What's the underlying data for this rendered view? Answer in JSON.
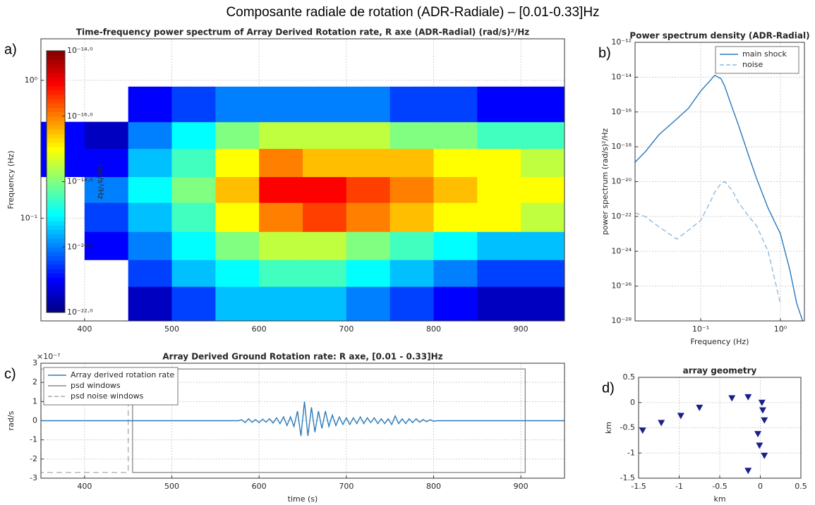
{
  "title": "Composante radiale de rotation (ADR-Radiale) – [0.01-0.33]Hz",
  "chart_data": [
    {
      "type": "heatmap",
      "panel_label": "a)",
      "title": "Time-frequency power spectrum of Array Derived Rotation rate, R axe (ADR-Radial) (rad/s)²/Hz",
      "y_label": "Frequency (Hz)",
      "xlim": [
        350,
        950
      ],
      "xticks": [
        400,
        500,
        600,
        700,
        800,
        900
      ],
      "ylim": [
        0.018,
        2
      ],
      "ylog": true,
      "yticks": [
        {
          "value": 0.1,
          "label": "10⁻¹"
        },
        {
          "value": 1,
          "label": "10⁰"
        }
      ],
      "grid": true,
      "x_edges": [
        350,
        400,
        450,
        500,
        550,
        600,
        650,
        700,
        750,
        800,
        850,
        900,
        950
      ],
      "y_edges": [
        0.018,
        0.032,
        0.05,
        0.08,
        0.13,
        0.2,
        0.32,
        0.5,
        0.9
      ],
      "z": [
        [
          null,
          null,
          3.2e-22,
          3.2e-21,
          3.2e-20,
          3.2e-20,
          3.2e-20,
          1e-20,
          3.2e-21,
          1e-21,
          3.2e-22,
          3.2e-22
        ],
        [
          null,
          null,
          3.2e-21,
          3.2e-20,
          1e-19,
          3.2e-19,
          3.2e-19,
          1e-19,
          3.2e-20,
          1e-20,
          3.2e-21,
          3.2e-21
        ],
        [
          null,
          1e-21,
          1e-20,
          1e-19,
          1e-18,
          3.2e-18,
          3.2e-18,
          1e-18,
          3.2e-19,
          1e-19,
          3.2e-20,
          3.2e-20
        ],
        [
          null,
          3.2e-21,
          3.2e-20,
          3.2e-19,
          1e-17,
          1e-16,
          3.2e-16,
          1e-16,
          3.2e-17,
          1e-17,
          1e-17,
          3.2e-18
        ],
        [
          null,
          1e-20,
          1e-19,
          1e-18,
          3.2e-17,
          1e-15,
          1e-15,
          3.2e-16,
          1e-16,
          3.2e-17,
          1e-17,
          1e-17
        ],
        [
          1e-21,
          1e-21,
          3.2e-20,
          3.2e-19,
          1e-17,
          1e-16,
          3.2e-17,
          3.2e-17,
          3.2e-17,
          1e-17,
          1e-17,
          3.2e-18
        ],
        [
          1e-21,
          3.2e-22,
          1e-20,
          1e-19,
          1e-18,
          3.2e-18,
          3.2e-18,
          3.2e-18,
          1e-18,
          1e-18,
          3.2e-19,
          3.2e-19
        ],
        [
          null,
          null,
          1e-21,
          3.2e-21,
          1e-20,
          1e-20,
          1e-20,
          1e-20,
          3.2e-21,
          3.2e-21,
          1e-21,
          1e-21
        ]
      ],
      "colorbar": {
        "colormap": "jet",
        "lim": [
          1e-22,
          1e-14
        ],
        "label": "rad/s²/Hz",
        "ticks": [
          {
            "value": 1e-14,
            "label": "10⁻¹⁴·⁰"
          },
          {
            "value": 1e-16,
            "label": "10⁻¹⁶·⁰"
          },
          {
            "value": 1e-18,
            "label": "10⁻¹⁸·⁰"
          },
          {
            "value": 1e-20,
            "label": "10⁻²⁰·⁰"
          },
          {
            "value": 1e-22,
            "label": "10⁻²²·⁰"
          }
        ]
      }
    },
    {
      "type": "line",
      "panel_label": "b)",
      "title": "Power spectrum density (ADR-Radial)",
      "x_label": "Frequency (Hz)",
      "y_label": "power spectrum (rad/s)²/Hz",
      "xlim": [
        0.015,
        2
      ],
      "xlog": true,
      "xticks": [
        {
          "value": 0.1,
          "label": "10⁻¹"
        },
        {
          "value": 1,
          "label": "10⁰"
        }
      ],
      "ylim": [
        1e-28,
        1e-12
      ],
      "ylog": true,
      "yticks": [
        {
          "value": 1e-28,
          "label": "10⁻²⁸"
        },
        {
          "value": 1e-26,
          "label": "10⁻²⁶"
        },
        {
          "value": 1e-24,
          "label": "10⁻²⁴"
        },
        {
          "value": 1e-22,
          "label": "10⁻²²"
        },
        {
          "value": 1e-20,
          "label": "10⁻²⁰"
        },
        {
          "value": 1e-18,
          "label": "10⁻¹⁸"
        },
        {
          "value": 1e-16,
          "label": "10⁻¹⁶"
        },
        {
          "value": 1e-14,
          "label": "10⁻¹⁴"
        },
        {
          "value": 1e-12,
          "label": "10⁻¹²"
        }
      ],
      "grid": true,
      "legend": "upper-right",
      "x": [
        0.015,
        0.02,
        0.03,
        0.05,
        0.07,
        0.1,
        0.13,
        0.15,
        0.18,
        0.2,
        0.25,
        0.3,
        0.4,
        0.5,
        0.7,
        1,
        1.3,
        1.6,
        1.9
      ],
      "series": [
        {
          "name": "main shock",
          "color": "#2878bd",
          "line_style": "solid",
          "values": [
            1.3e-19,
            5e-19,
            5e-18,
            4e-17,
            1.6e-16,
            1.6e-15,
            6e-15,
            1.3e-14,
            8e-15,
            3e-15,
            1.6e-16,
            1.6e-17,
            3e-19,
            1.6e-20,
            3e-22,
            1e-23,
            1e-25,
            1e-27,
            1e-28
          ]
        },
        {
          "name": "noise",
          "color": "#8fb9dd",
          "line_style": "dashed",
          "values": [
            1.6e-22,
            1e-22,
            2.5e-23,
            5e-24,
            1.6e-23,
            6e-23,
            6e-22,
            2.5e-21,
            8e-21,
            1e-20,
            3e-21,
            6e-22,
            1e-22,
            3e-23,
            1e-24,
            1e-27,
            null,
            null,
            null
          ]
        }
      ]
    },
    {
      "type": "line",
      "panel_label": "c)",
      "title": "Array Derived Ground Rotation rate: R axe,  [0.01 - 0.33]Hz",
      "x_label": "time (s)",
      "y_label": "rad/s",
      "y_offset_label": "×10⁻⁷",
      "xlim": [
        350,
        950
      ],
      "xticks": [
        400,
        500,
        600,
        700,
        800,
        900
      ],
      "ylim": [
        -3e-07,
        3e-07
      ],
      "yticks": [
        {
          "value": -3e-07,
          "label": "-3"
        },
        {
          "value": -2e-07,
          "label": "-2"
        },
        {
          "value": -1e-07,
          "label": "-1"
        },
        {
          "value": 0,
          "label": "0"
        },
        {
          "value": 1e-07,
          "label": "1"
        },
        {
          "value": 2e-07,
          "label": "2"
        },
        {
          "value": 3e-07,
          "label": "3"
        }
      ],
      "grid": true,
      "legend": "upper-left",
      "x": [
        350,
        576,
        580,
        584,
        588,
        592,
        596,
        600,
        604,
        608,
        612,
        616,
        620,
        624,
        628,
        632,
        636,
        640,
        644,
        648,
        652,
        656,
        660,
        664,
        668,
        672,
        676,
        680,
        684,
        688,
        692,
        696,
        700,
        704,
        708,
        712,
        716,
        720,
        724,
        728,
        732,
        736,
        740,
        744,
        748,
        752,
        756,
        760,
        764,
        768,
        772,
        776,
        780,
        784,
        788,
        792,
        796,
        800,
        804,
        950
      ],
      "series": [
        {
          "name": "Array derived rotation rate",
          "color": "#2b7bba",
          "line_style": "solid",
          "values": [
            0,
            0,
            5e-09,
            -1e-08,
            1e-08,
            -8e-09,
            6e-09,
            -1e-08,
            8e-09,
            -7e-09,
            1e-08,
            -1.2e-08,
            1.5e-08,
            -1.5e-08,
            2e-08,
            -2.5e-08,
            2e-08,
            -3e-08,
            5e-08,
            -8e-08,
            1e-07,
            -8e-08,
            7e-08,
            -6e-08,
            5e-08,
            -4e-08,
            5e-08,
            -3e-08,
            3e-08,
            -2.5e-08,
            2e-08,
            -2e-08,
            1.5e-08,
            -2e-08,
            1.5e-08,
            -1.5e-08,
            2e-08,
            -1.5e-08,
            1.5e-08,
            -1e-08,
            1.5e-08,
            -1.5e-08,
            1e-08,
            -1.5e-08,
            1e-08,
            -2e-08,
            2.5e-08,
            -1.5e-08,
            1e-08,
            -1.5e-08,
            1e-08,
            -1e-08,
            1e-08,
            -8e-09,
            6e-09,
            -5e-09,
            5e-09,
            -3e-09,
            0,
            0
          ]
        }
      ],
      "windows": [
        {
          "name": "psd windows",
          "color": "#888888",
          "line_style": "solid",
          "xlim": [
            455,
            905
          ],
          "ylim": [
            -2.7e-07,
            2.7e-07
          ]
        },
        {
          "name": "psd noise windows",
          "color": "#aaaaaa",
          "line_style": "dashed",
          "xlim": [
            350,
            450
          ],
          "ylim": [
            -2.7e-07,
            2.7e-07
          ]
        }
      ]
    },
    {
      "type": "scatter",
      "panel_label": "d)",
      "title": "array geometry",
      "x_label": "km",
      "y_label": "km",
      "xlim": [
        -1.5,
        0.5
      ],
      "xticks": [
        -1.5,
        -1,
        -0.5,
        0,
        0.5
      ],
      "ylim": [
        -1.5,
        0.5
      ],
      "yticks": [
        -1.5,
        -1,
        -0.5,
        0,
        0.5
      ],
      "grid": true,
      "color": "#1b1f8a",
      "x": [
        -1.45,
        -1.22,
        -0.98,
        -0.75,
        -0.35,
        -0.15,
        0.02,
        0.03,
        0.05,
        -0.03,
        -0.01,
        0.05,
        -0.15
      ],
      "values": [
        -0.55,
        -0.4,
        -0.26,
        -0.1,
        0.09,
        0.11,
        0,
        -0.15,
        -0.35,
        -0.62,
        -0.85,
        -1.05,
        -1.35
      ]
    }
  ]
}
